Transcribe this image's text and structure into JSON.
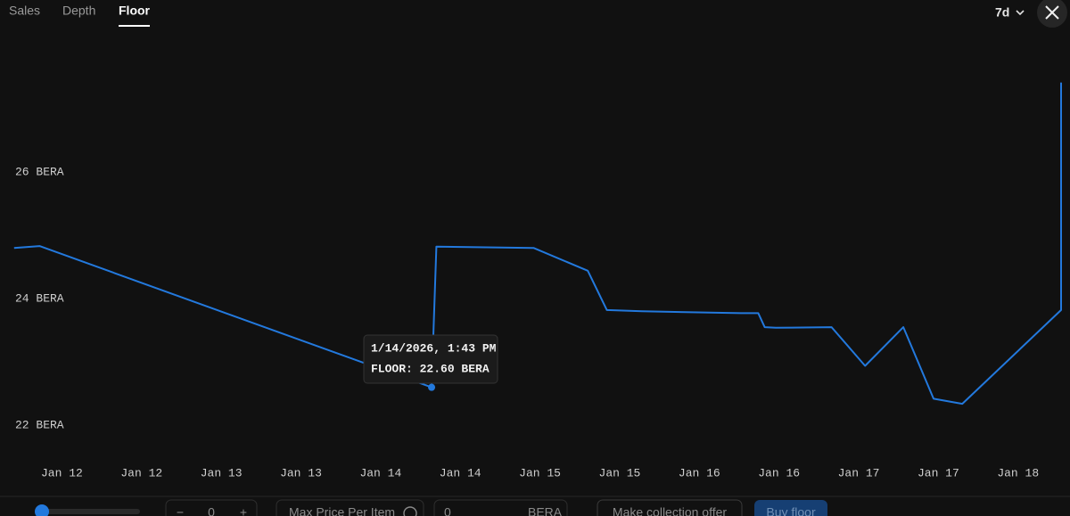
{
  "tabs": [
    "Sales",
    "Depth",
    "Floor"
  ],
  "active_tab": 2,
  "period": "7d",
  "chart_data": {
    "type": "line",
    "color": "#2379dd",
    "x": [
      11.7,
      11.86,
      14.32,
      14.35,
      14.96,
      15.3,
      15.42,
      15.64,
      16.26,
      16.37,
      16.41,
      16.48,
      16.83,
      17.04,
      17.28,
      17.47,
      17.65,
      18.27,
      18.27
    ],
    "values": [
      24.8,
      24.83,
      22.6,
      24.82,
      24.8,
      24.44,
      23.82,
      23.8,
      23.77,
      23.77,
      23.55,
      23.54,
      23.55,
      22.94,
      23.55,
      22.42,
      22.34,
      23.82,
      27.41
    ],
    "xlim": [
      11.69,
      18.27
    ],
    "ylim": [
      21.54,
      28.15
    ],
    "xticks": [
      {
        "value": 12,
        "label": "Jan 12"
      },
      {
        "value": 12.5,
        "label": "Jan 12"
      },
      {
        "value": 13,
        "label": "Jan 13"
      },
      {
        "value": 13.5,
        "label": "Jan 13"
      },
      {
        "value": 14,
        "label": "Jan 14"
      },
      {
        "value": 14.5,
        "label": "Jan 14"
      },
      {
        "value": 15,
        "label": "Jan 15"
      },
      {
        "value": 15.5,
        "label": "Jan 15"
      },
      {
        "value": 16,
        "label": "Jan 16"
      },
      {
        "value": 16.5,
        "label": "Jan 16"
      },
      {
        "value": 17,
        "label": "Jan 17"
      },
      {
        "value": 17.5,
        "label": "Jan 17"
      },
      {
        "value": 18,
        "label": "Jan 18"
      }
    ],
    "yticks": [
      {
        "value": 22,
        "label": "22 BERA"
      },
      {
        "value": 24,
        "label": "24 BERA"
      },
      {
        "value": 26,
        "label": "26 BERA"
      }
    ],
    "highlight_index": 2,
    "tooltip": [
      "1/14/2026, 1:43 PM",
      "FLOOR: 22.60 BERA"
    ]
  },
  "footer": {
    "quantity": 0,
    "minus": "−",
    "plus": "+",
    "max_price_label": "Max Price Per Item",
    "max_price": 0,
    "currency": "BERA",
    "offer_button": "Make collection offer",
    "buy_button": "Buy floor"
  }
}
